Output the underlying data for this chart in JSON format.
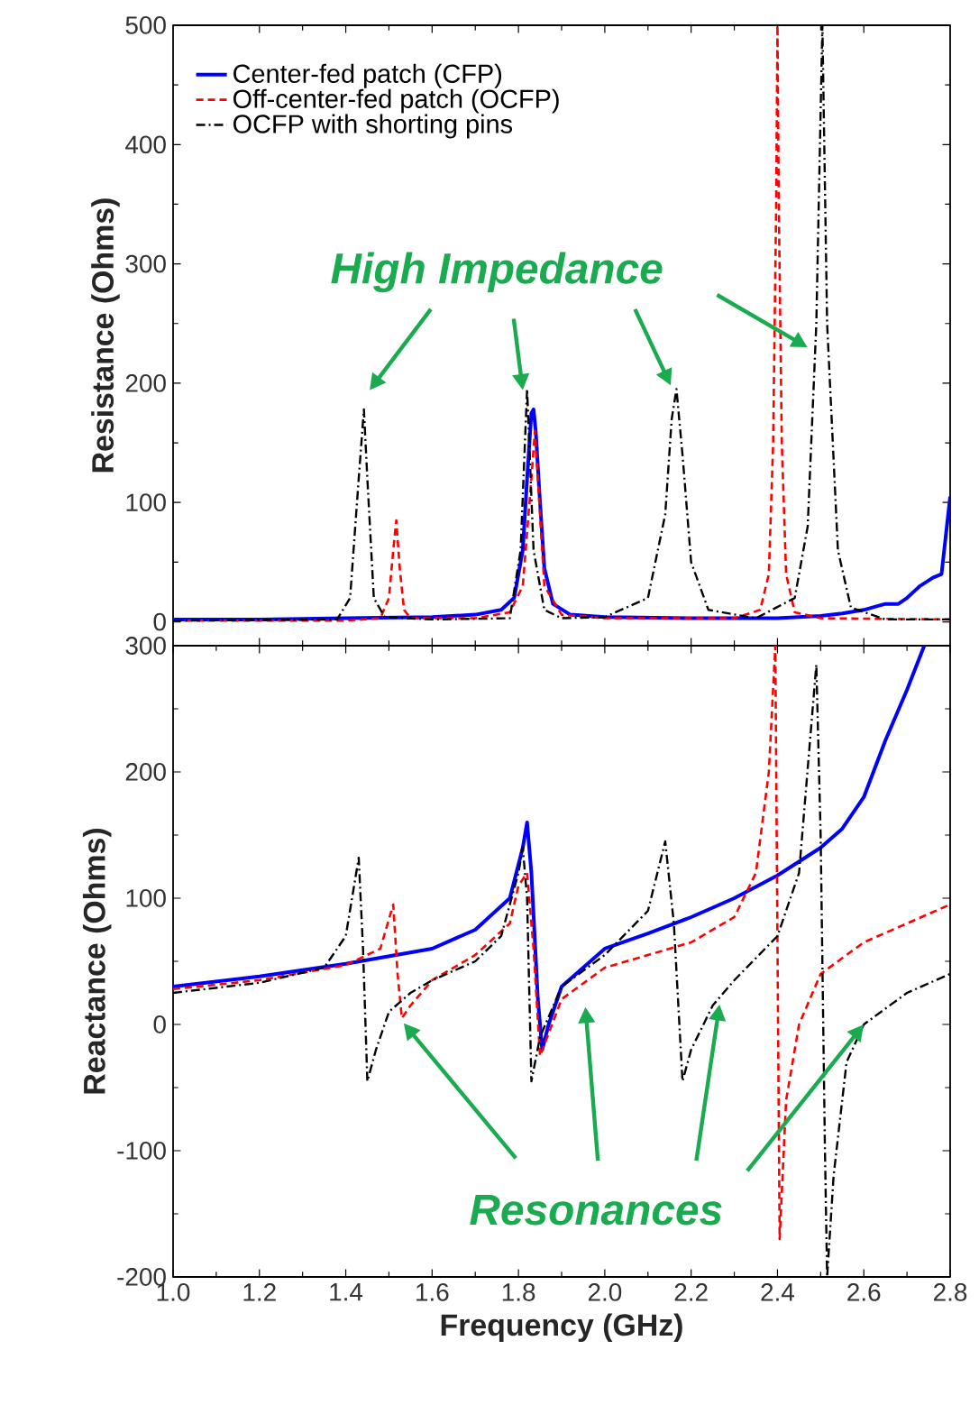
{
  "chart_data": [
    {
      "type": "line",
      "ylabel": "Resistance (Ohms)",
      "xlim": [
        1.0,
        2.8
      ],
      "ylim": [
        -20,
        500
      ],
      "xticks": [
        1.2,
        1.4,
        1.6,
        1.8,
        2.0,
        2.2,
        2.4,
        2.6
      ],
      "yticks": [
        0,
        100,
        200,
        300,
        400,
        500
      ],
      "tick_labels": "y",
      "legend": "top left",
      "grid": false,
      "annotations": [
        {
          "text": "High Impedance",
          "x": 2.47,
          "y": 230
        }
      ],
      "series": [
        {
          "name": "Center-fed patch (CFP)",
          "color": "#0000ff",
          "line_style": "solid",
          "x": [
            1.0,
            1.2,
            1.4,
            1.6,
            1.7,
            1.76,
            1.79,
            1.81,
            1.82,
            1.83,
            1.835,
            1.84,
            1.85,
            1.86,
            1.88,
            1.92,
            2.0,
            2.2,
            2.4,
            2.5,
            2.55,
            2.6,
            2.62,
            2.65,
            2.68,
            2.7,
            2.73,
            2.76,
            2.78,
            2.8
          ],
          "values": [
            2,
            2,
            3,
            4,
            6,
            10,
            20,
            60,
            120,
            175,
            178,
            160,
            100,
            45,
            15,
            6,
            4,
            3,
            3,
            5,
            7,
            10,
            12,
            15,
            15,
            20,
            30,
            37,
            40,
            105
          ]
        },
        {
          "name": "Off-center-fed patch (OCFP)",
          "color": "#ff0000",
          "line_style": "dashed",
          "x": [
            1.0,
            1.4,
            1.48,
            1.5,
            1.51,
            1.517,
            1.525,
            1.535,
            1.55,
            1.7,
            1.78,
            1.81,
            1.83,
            1.838,
            1.845,
            1.86,
            1.9,
            2.0,
            2.3,
            2.36,
            2.38,
            2.39,
            2.397,
            2.4,
            2.403,
            2.41,
            2.42,
            2.44,
            2.5,
            2.8
          ],
          "values": [
            1,
            1,
            3,
            20,
            60,
            85,
            45,
            10,
            3,
            3,
            8,
            30,
            120,
            160,
            120,
            30,
            6,
            3,
            3,
            10,
            40,
            150,
            350,
            500,
            350,
            150,
            40,
            8,
            3,
            2
          ]
        },
        {
          "name": "OCFP with shorting pins",
          "color": "#000000",
          "line_style": "dashdot",
          "x": [
            1.0,
            1.38,
            1.41,
            1.43,
            1.442,
            1.45,
            1.465,
            1.49,
            1.6,
            1.78,
            1.805,
            1.82,
            1.835,
            1.86,
            1.9,
            2.0,
            2.1,
            2.14,
            2.155,
            2.166,
            2.18,
            2.2,
            2.24,
            2.35,
            2.44,
            2.47,
            2.49,
            2.504,
            2.515,
            2.54,
            2.57,
            2.65,
            2.8
          ],
          "values": [
            1,
            2,
            20,
            120,
            178,
            120,
            20,
            4,
            2,
            3,
            60,
            195,
            60,
            10,
            3,
            4,
            20,
            90,
            170,
            195,
            140,
            50,
            10,
            3,
            20,
            80,
            250,
            500,
            250,
            60,
            12,
            2,
            2
          ]
        }
      ]
    },
    {
      "type": "line",
      "xlabel": "Frequency (GHz)",
      "ylabel": "Reactance (Ohms)",
      "xlim": [
        1.0,
        2.8
      ],
      "ylim": [
        -200,
        300
      ],
      "xticks": [
        {
          "value": 1.0,
          "label": "1.0"
        },
        1.2,
        1.4,
        1.6,
        1.8,
        {
          "value": 2.0,
          "label": "2.0"
        },
        2.2,
        2.4,
        2.6,
        2.8
      ],
      "yticks": [
        -200,
        -100,
        0,
        100,
        200,
        300
      ],
      "grid": false,
      "annotations": [
        {
          "text": "Resonances",
          "x": 2.6,
          "y": 0
        }
      ],
      "series": [
        {
          "color": "#0000ff",
          "line_style": "solid",
          "x": [
            1.0,
            1.2,
            1.4,
            1.6,
            1.7,
            1.78,
            1.81,
            1.82,
            1.83,
            1.845,
            1.855,
            1.87,
            1.9,
            1.95,
            2.0,
            2.1,
            2.2,
            2.3,
            2.4,
            2.5,
            2.55,
            2.6,
            2.65,
            2.7,
            2.74
          ],
          "values": [
            30,
            38,
            48,
            60,
            75,
            100,
            140,
            160,
            120,
            20,
            -20,
            0,
            30,
            45,
            60,
            72,
            85,
            100,
            118,
            140,
            155,
            180,
            225,
            265,
            300
          ]
        },
        {
          "color": "#ff0000",
          "line_style": "dashed",
          "x": [
            1.0,
            1.2,
            1.4,
            1.48,
            1.51,
            1.52,
            1.53,
            1.55,
            1.6,
            1.7,
            1.78,
            1.8,
            1.82,
            1.835,
            1.85,
            1.9,
            2.0,
            2.2,
            2.3,
            2.35,
            2.38,
            2.395,
            2.405,
            2.42,
            2.45,
            2.5,
            2.6,
            2.7,
            2.8
          ],
          "values": [
            28,
            35,
            47,
            60,
            95,
            40,
            5,
            15,
            35,
            55,
            80,
            110,
            120,
            60,
            -25,
            20,
            45,
            65,
            85,
            120,
            200,
            300,
            -170,
            -60,
            0,
            40,
            65,
            80,
            95
          ]
        },
        {
          "color": "#000000",
          "line_style": "dashdot",
          "x": [
            1.0,
            1.2,
            1.35,
            1.4,
            1.43,
            1.44,
            1.45,
            1.47,
            1.5,
            1.55,
            1.6,
            1.7,
            1.76,
            1.8,
            1.81,
            1.82,
            1.83,
            1.85,
            1.9,
            2.0,
            2.1,
            2.14,
            2.16,
            2.18,
            2.2,
            2.25,
            2.3,
            2.4,
            2.45,
            2.49,
            2.5,
            2.51,
            2.515,
            2.53,
            2.56,
            2.6,
            2.7,
            2.8
          ],
          "values": [
            25,
            33,
            45,
            70,
            132,
            60,
            -45,
            -20,
            10,
            25,
            35,
            50,
            70,
            120,
            140,
            100,
            -45,
            -10,
            30,
            55,
            90,
            145,
            80,
            -45,
            -20,
            15,
            35,
            70,
            120,
            285,
            150,
            -100,
            -200,
            -120,
            -30,
            0,
            25,
            40
          ]
        }
      ]
    }
  ]
}
